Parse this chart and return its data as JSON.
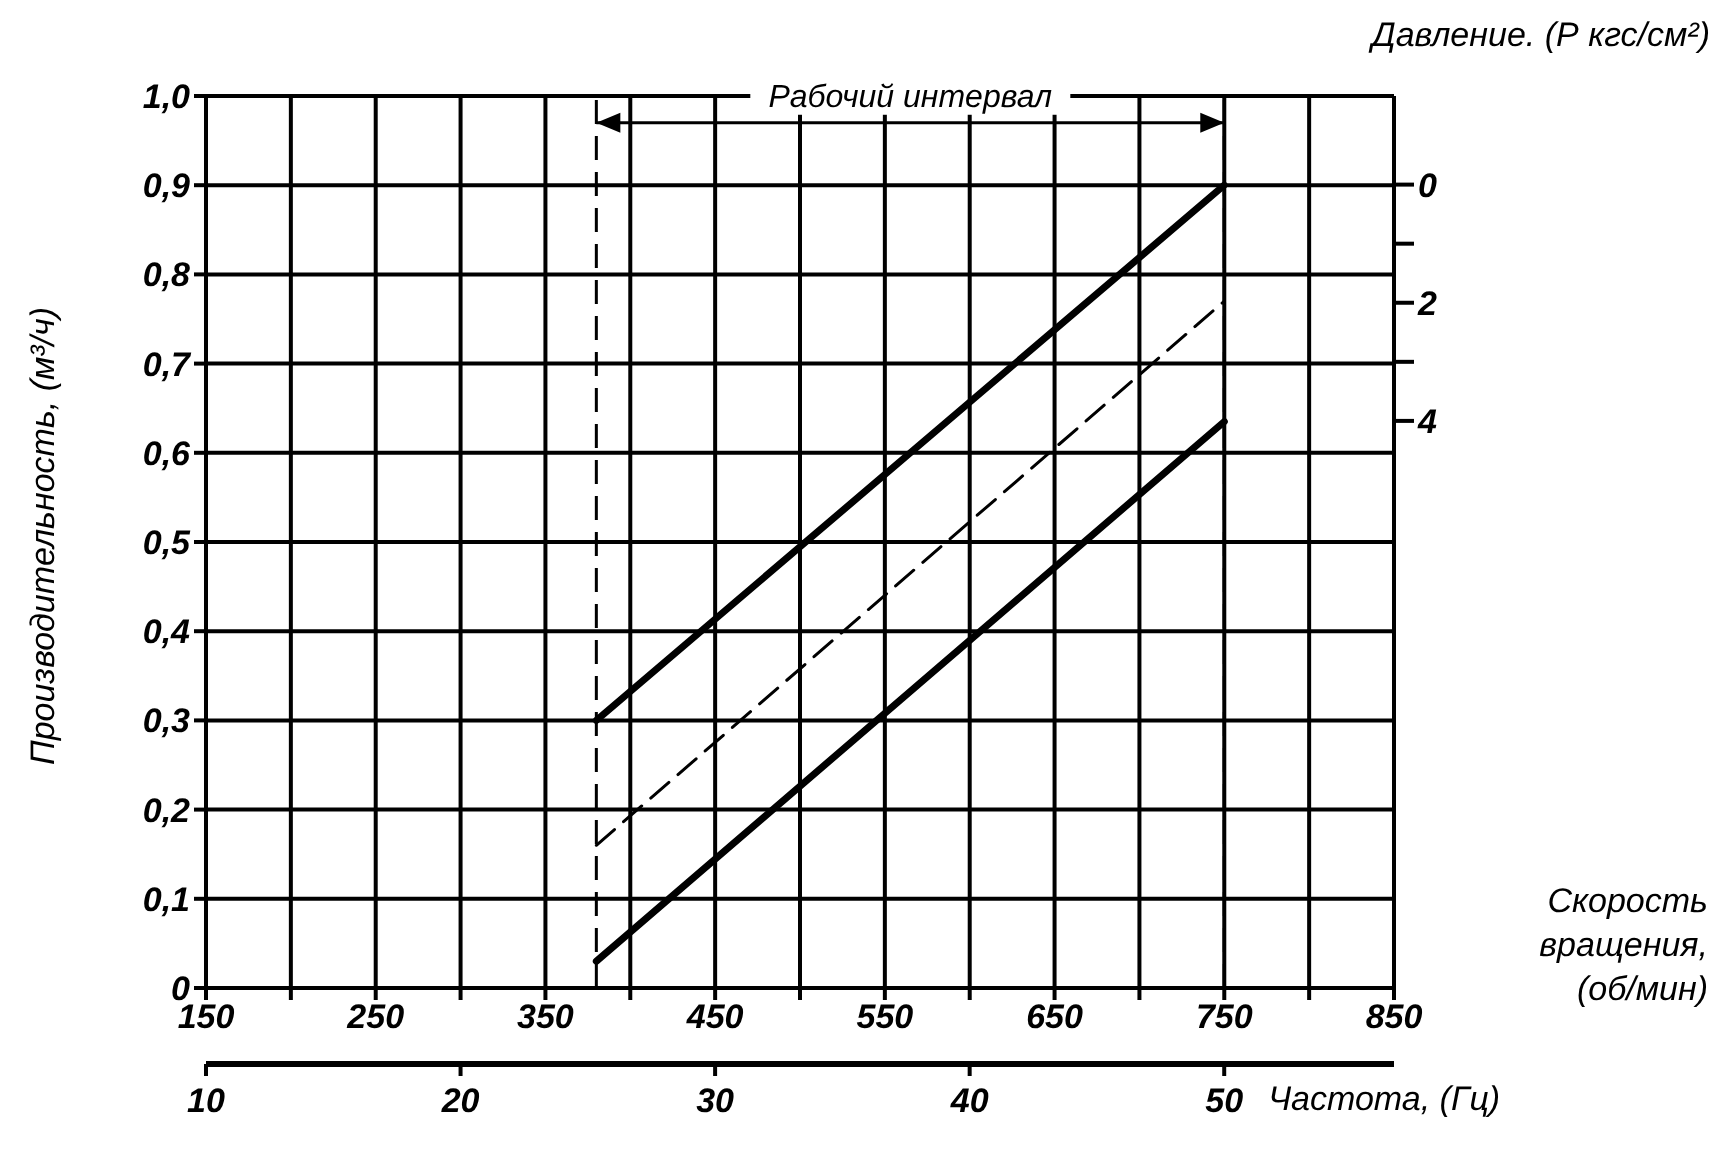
{
  "chart_data": {
    "type": "line",
    "xlabel": "Скорость вращения, (об/мин)",
    "ylabel": "Производительность, (м³/ч)",
    "x2label": "Частота, (Гц)",
    "y2label": "Давление. (Р кгс/см²)",
    "xlim": [
      150,
      850
    ],
    "xticks": [
      150,
      {
        "value": 200,
        "label": null
      },
      250,
      {
        "value": 300,
        "label": null
      },
      350,
      {
        "value": 400,
        "label": null
      },
      450,
      {
        "value": 500,
        "label": null
      },
      550,
      {
        "value": 600,
        "label": null
      },
      650,
      {
        "value": 700,
        "label": null
      },
      750,
      {
        "value": 800,
        "label": null
      },
      850
    ],
    "x2lim": [
      10,
      56.67
    ],
    "x2ticks": [
      10,
      20,
      30,
      40,
      50
    ],
    "ylim": [
      0,
      1.0
    ],
    "yticks": [
      0,
      {
        "value": 0.1,
        "label": "0,1"
      },
      {
        "value": 0.2,
        "label": "0,2"
      },
      {
        "value": 0.3,
        "label": "0,3"
      },
      {
        "value": 0.4,
        "label": "0,4"
      },
      {
        "value": 0.5,
        "label": "0,5"
      },
      {
        "value": 0.6,
        "label": "0,6"
      },
      {
        "value": 0.7,
        "label": "0,7"
      },
      {
        "value": 0.8,
        "label": "0,8"
      },
      {
        "value": 0.9,
        "label": "0,9"
      },
      {
        "value": 1.0,
        "label": "1,0"
      }
    ],
    "y2lim": [
      13.6,
      -1.5
    ],
    "y2ticks": [
      0,
      {
        "value": 1,
        "label": null
      },
      2,
      {
        "value": 3,
        "label": null
      },
      4
    ],
    "grid": true,
    "marker": "none",
    "x": [
      380,
      750
    ],
    "series": [
      {
        "color": "#000000",
        "values": [
          0.3,
          0.9
        ],
        "line_style": "solid"
      },
      {
        "color": "#000000",
        "values": [
          0.16,
          0.77
        ],
        "line_style": "dashed"
      },
      {
        "color": "#000000",
        "values": [
          0.03,
          0.635
        ],
        "line_style": "solid"
      }
    ],
    "ref_lines": [
      {
        "axis": "x",
        "value": 380,
        "line_style": "dashed"
      },
      {
        "axis": "x",
        "value": 750,
        "line_style": "dashed"
      }
    ],
    "annotations": [
      "Рабочий интервал"
    ]
  }
}
